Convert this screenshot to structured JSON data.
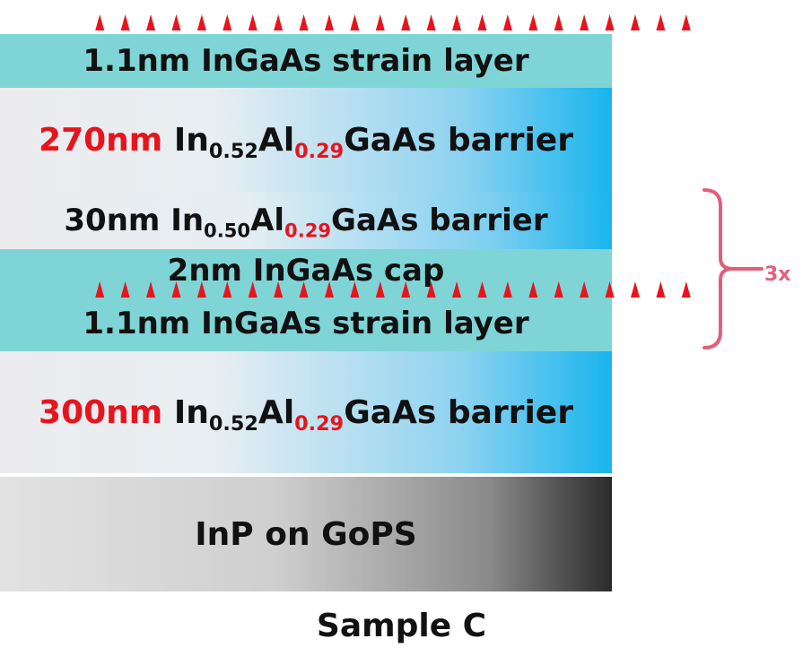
{
  "layers": {
    "top_strain": "1.1nm InGaAs strain layer",
    "barrier_270": {
      "thickness": "270nm",
      "in": "In",
      "in_sub": "0.52",
      "al": "Al",
      "al_sub": "0.29",
      "rest": "GaAs barrier"
    },
    "barrier_30": {
      "thickness": "30nm",
      "in": "In",
      "in_sub": "0.50",
      "al": "Al",
      "al_sub": "0.29",
      "rest": "GaAs barrier"
    },
    "cap": "2nm InGaAs cap",
    "lower_strain": "1.1nm InGaAs strain layer",
    "barrier_300": {
      "thickness": "300nm",
      "in": "In",
      "in_sub": "0.52",
      "al": "Al",
      "al_sub": "0.29",
      "rest": "GaAs barrier"
    },
    "substrate": "InP on GoPS"
  },
  "repeat_label": "3x",
  "caption": "Sample C",
  "colors": {
    "strain": "#7fd4d6",
    "highlight_red": "#e8141d",
    "brace": "#e0607c",
    "barrier_gradient_end": "#19b4ee",
    "substrate_gradient_end": "#2b2b2b"
  }
}
